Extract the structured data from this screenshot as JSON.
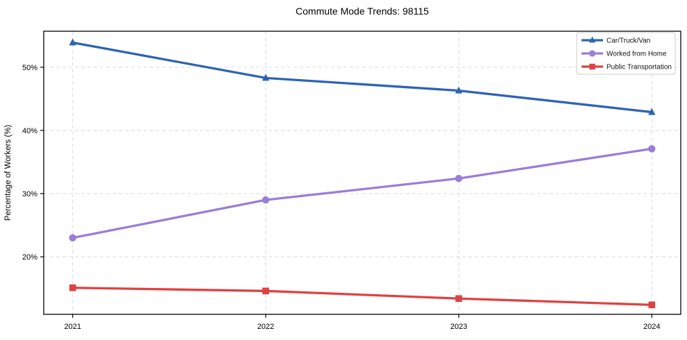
{
  "chart_data": {
    "type": "line",
    "title": "Commute Mode Trends: 98115",
    "xlabel": "",
    "ylabel": "Percentage of Workers (%)",
    "categories": [
      "2021",
      "2022",
      "2023",
      "2024"
    ],
    "x": [
      2021,
      2022,
      2023,
      2024
    ],
    "series": [
      {
        "name": "Car/Truck/Van",
        "marker": "triangle",
        "color": "#2d64b4",
        "values": [
          53.9,
          48.3,
          46.3,
          42.9
        ]
      },
      {
        "name": "Worked from Home",
        "marker": "circle",
        "color": "#9b7dd7",
        "values": [
          23.0,
          29.0,
          32.4,
          37.1
        ]
      },
      {
        "name": "Public Transportation",
        "marker": "square",
        "color": "#e04141",
        "values": [
          15.1,
          14.6,
          13.4,
          12.4
        ]
      }
    ],
    "yticks": {
      "values": [
        20,
        30,
        40,
        50
      ],
      "labels": [
        "20%",
        "30%",
        "40%",
        "50%"
      ]
    },
    "xlim": [
      2020.85,
      2024.15
    ],
    "ylim": [
      10.9,
      55.7
    ],
    "grid": {
      "show": true,
      "line_style": "dashed",
      "color": "#d9d9d9"
    },
    "legend": {
      "position": "upper right",
      "border_color": "#cccccc",
      "background": "#ffffff"
    },
    "axis_color": "#000000",
    "text_color": "#000000"
  }
}
